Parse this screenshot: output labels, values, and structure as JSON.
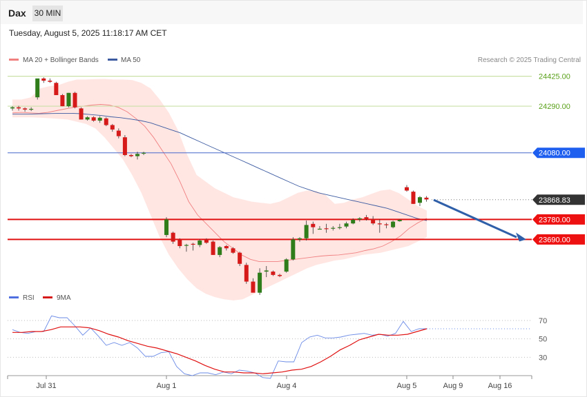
{
  "header": {
    "ticker": "Dax",
    "timeframe": "30 MIN",
    "datetime": "Tuesday, August 5, 2025 11:18:17 AM CET"
  },
  "legend": {
    "bb_label": "MA 20 + Bollinger Bands",
    "ma50_label": "MA 50",
    "credit": "Research © 2025 Trading Central"
  },
  "rsi_legend": {
    "rsi_label": "RSI",
    "ma_label": "9MA"
  },
  "colors": {
    "up": "#2e7d1a",
    "down": "#d61a1a",
    "bb_fill": "#ffe3e0",
    "ma20": "#f08080",
    "ma50": "#3b5aa0",
    "target_arrow": "#2f5fa8"
  },
  "chart_data": [
    {
      "type": "candlestick",
      "ylim": [
        23480,
        24520
      ],
      "x_ticks": [
        "Jul 31",
        "Aug 1",
        "Aug 4",
        "Aug 5",
        "Aug 9",
        "Aug 16"
      ],
      "levels": [
        {
          "value": 24425.0,
          "label": "24425.00",
          "kind": "resistance"
        },
        {
          "value": 24290.0,
          "label": "24290.00",
          "kind": "resistance"
        },
        {
          "value": 24080.0,
          "label": "24080.00",
          "kind": "pivot"
        },
        {
          "value": 23868.83,
          "label": "23868.83",
          "kind": "last"
        },
        {
          "value": 23780.0,
          "label": "23780.00",
          "kind": "support"
        },
        {
          "value": 23690.0,
          "label": "23690.00",
          "kind": "support"
        }
      ],
      "candles": [
        [
          24280,
          24290,
          24270,
          24285
        ],
        [
          24285,
          24292,
          24270,
          24280
        ],
        [
          24280,
          24285,
          24265,
          24275
        ],
        [
          24275,
          24285,
          24268,
          24278
        ],
        [
          24330,
          24410,
          24320,
          24415
        ],
        [
          24415,
          24420,
          24395,
          24405
        ],
        [
          24405,
          24415,
          24395,
          24400
        ],
        [
          24395,
          24400,
          24340,
          24340
        ],
        [
          24340,
          24345,
          24290,
          24290
        ],
        [
          24290,
          24350,
          24285,
          24350
        ],
        [
          24350,
          24355,
          24280,
          24285
        ],
        [
          24280,
          24285,
          24230,
          24230
        ],
        [
          24230,
          24245,
          24225,
          24240
        ],
        [
          24240,
          24245,
          24220,
          24225
        ],
        [
          24225,
          24245,
          24215,
          24238
        ],
        [
          24235,
          24240,
          24200,
          24205
        ],
        [
          24205,
          24210,
          24175,
          24185
        ],
        [
          24180,
          24190,
          24145,
          24155
        ],
        [
          24150,
          24160,
          24065,
          24070
        ],
        [
          24070,
          24075,
          24060,
          24065
        ],
        [
          24065,
          24085,
          24050,
          24075
        ],
        [
          24078,
          24085,
          24070,
          24080
        ],
        [
          23710,
          23790,
          23700,
          23780
        ],
        [
          23720,
          23725,
          23670,
          23680
        ],
        [
          23690,
          23695,
          23650,
          23660
        ],
        [
          23665,
          23670,
          23635,
          23665
        ],
        [
          23670,
          23675,
          23640,
          23668
        ],
        [
          23665,
          23690,
          23655,
          23685
        ],
        [
          23690,
          23695,
          23670,
          23675
        ],
        [
          23680,
          23685,
          23620,
          23620
        ],
        [
          23620,
          23660,
          23610,
          23655
        ],
        [
          23660,
          23665,
          23640,
          23650
        ],
        [
          23650,
          23655,
          23625,
          23630
        ],
        [
          23630,
          23635,
          23570,
          23580
        ],
        [
          23575,
          23585,
          23490,
          23500
        ],
        [
          23500,
          23515,
          23455,
          23450
        ],
        [
          23450,
          23560,
          23440,
          23540
        ],
        [
          23545,
          23570,
          23520,
          23550
        ],
        [
          23545,
          23550,
          23525,
          23530
        ],
        [
          23530,
          23535,
          23520,
          23525
        ],
        [
          23545,
          23605,
          23540,
          23600
        ],
        [
          23600,
          23700,
          23595,
          23690
        ],
        [
          23690,
          23700,
          23680,
          23695
        ],
        [
          23695,
          23775,
          23685,
          23755
        ],
        [
          23760,
          23770,
          23715,
          23745
        ],
        [
          23735,
          23750,
          23735,
          23738
        ],
        [
          23740,
          23760,
          23720,
          23738
        ],
        [
          23740,
          23750,
          23730,
          23742
        ],
        [
          23742,
          23760,
          23735,
          23745
        ],
        [
          23748,
          23770,
          23740,
          23762
        ],
        [
          23762,
          23785,
          23758,
          23778
        ],
        [
          23780,
          23790,
          23770,
          23785
        ],
        [
          23790,
          23800,
          23775,
          23782
        ],
        [
          23782,
          23795,
          23755,
          23762
        ],
        [
          23762,
          23780,
          23720,
          23758
        ],
        [
          23758,
          23765,
          23740,
          23755
        ],
        [
          23745,
          23775,
          23740,
          23770
        ],
        [
          23772,
          23780,
          23770,
          23778
        ],
        [
          23925,
          23935,
          23905,
          23910
        ],
        [
          23905,
          23910,
          23850,
          23850
        ],
        [
          23855,
          23885,
          23840,
          23880
        ],
        [
          23878,
          23885,
          23860,
          23870
        ]
      ],
      "ma20": [
        24260,
        24262,
        24260,
        24258,
        24262,
        24270,
        24278,
        24285,
        24290,
        24295,
        24298,
        24295,
        24285,
        24265,
        24235,
        24200,
        24150,
        24090,
        24030,
        23950,
        23860,
        23800,
        23760,
        23720,
        23680,
        23650,
        23620,
        23600,
        23590,
        23590,
        23590,
        23595,
        23600,
        23605,
        23610,
        23615,
        23618,
        23620,
        23625,
        23630,
        23640,
        23648,
        23660,
        23680,
        23705,
        23740,
        23765,
        23785
      ],
      "ma50": [
        24255,
        24255,
        24255,
        24256,
        24257,
        24258,
        24258,
        24256,
        24252,
        24248,
        24242,
        24238,
        24232,
        24225,
        24215,
        24200,
        24185,
        24170,
        24150,
        24130,
        24110,
        24090,
        24070,
        24050,
        24030,
        24010,
        23990,
        23970,
        23950,
        23930,
        23915,
        23900,
        23890,
        23880,
        23870,
        23860,
        23850,
        23840,
        23830,
        23815,
        23800,
        23785,
        23775
      ],
      "bb_upper": [
        24320,
        24320,
        24330,
        24370,
        24380,
        24385,
        24400,
        24410,
        24410,
        24412,
        24413,
        24410,
        24410,
        24408,
        24395,
        24370,
        24320,
        24260,
        24180,
        24070,
        23980,
        23950,
        23920,
        23900,
        23880,
        23870,
        23860,
        23855,
        23850,
        23860,
        23880,
        23900,
        23910,
        23908,
        23890,
        23850,
        23855,
        23870,
        23880,
        23895,
        23910,
        23915,
        23898,
        23870,
        23840,
        23820
      ],
      "bb_lower": [
        24240,
        24240,
        24240,
        24238,
        24236,
        24233,
        24230,
        24220,
        24210,
        24190,
        24150,
        24100,
        24050,
        23980,
        23900,
        23800,
        23700,
        23620,
        23560,
        23510,
        23470,
        23445,
        23430,
        23420,
        23415,
        23420,
        23440,
        23460,
        23480,
        23500,
        23520,
        23540,
        23560,
        23575,
        23585,
        23595,
        23600,
        23610,
        23620,
        23625,
        23630,
        23640,
        23650,
        23660,
        23680,
        23700,
        23720,
        23740
      ]
    },
    {
      "type": "line",
      "ylim": [
        10,
        85
      ],
      "y_ticks": [
        "70",
        "50",
        "30"
      ],
      "series": [
        {
          "name": "RSI",
          "values": [
            60,
            57,
            56,
            58,
            58,
            75,
            73,
            73,
            64,
            54,
            62,
            53,
            43,
            46,
            43,
            46,
            40,
            31,
            31,
            35,
            36,
            20,
            12,
            10,
            13,
            13,
            11,
            14,
            12,
            16,
            15,
            13,
            8,
            7,
            26,
            25,
            25,
            46,
            52,
            54,
            51,
            51,
            52,
            54,
            55,
            56,
            54,
            55,
            53,
            56,
            69,
            58,
            61,
            61
          ]
        },
        {
          "name": "9MA",
          "values": [
            57,
            57,
            58,
            58,
            60,
            63,
            63,
            63,
            62,
            59,
            55,
            52,
            48,
            45,
            42,
            40,
            37,
            34,
            30,
            26,
            21,
            17,
            14,
            14,
            13,
            13,
            12,
            13,
            14,
            16,
            17,
            20,
            25,
            31,
            38,
            43,
            49,
            52,
            55,
            54,
            54,
            55,
            58,
            61
          ]
        }
      ]
    }
  ]
}
